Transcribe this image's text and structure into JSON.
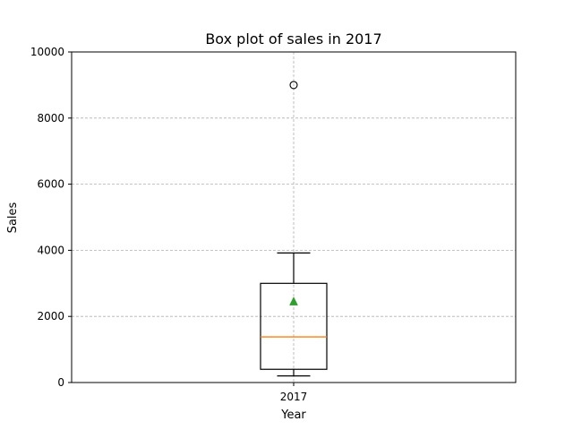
{
  "chart_data": {
    "type": "box",
    "title": "Box plot of sales in 2017",
    "xlabel": "Year",
    "ylabel": "Sales",
    "ylim": [
      0,
      10000
    ],
    "yticks": [
      0,
      2000,
      4000,
      6000,
      8000,
      10000
    ],
    "categories": [
      "2017"
    ],
    "grid": true,
    "boxes": [
      {
        "category": "2017",
        "whisker_low": 200,
        "q1": 400,
        "median": 1380,
        "q3": 3000,
        "whisker_high": 3920,
        "mean": 2450,
        "outliers": [
          9000
        ]
      }
    ],
    "colors": {
      "box": "#000000",
      "median": "#ff7f0e",
      "mean": "#2ca02c",
      "grid": "#b0b0b0"
    }
  }
}
